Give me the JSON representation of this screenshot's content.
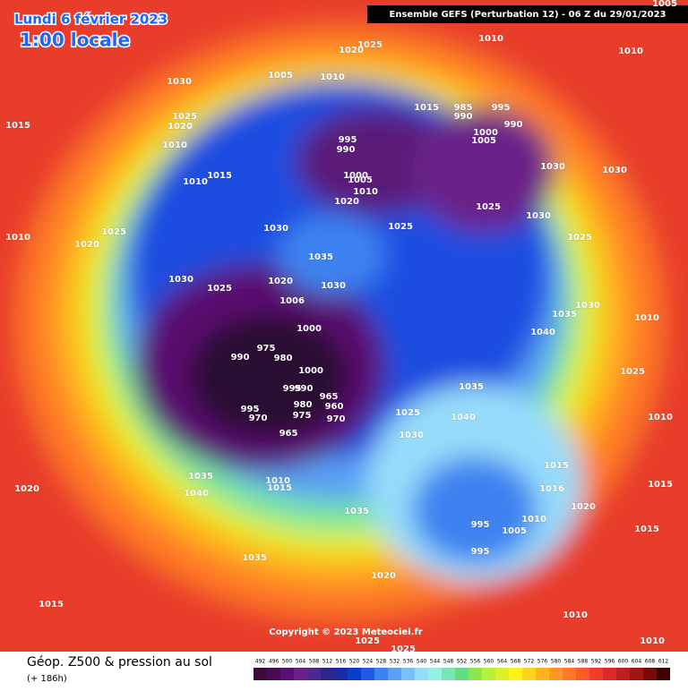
{
  "header": {
    "date": "Lundi 6 février 2023",
    "time": "1:00 locale",
    "run": "Ensemble GEFS  (Perturbation 12)  -  06 Z du 29/01/2023",
    "copyright": "Copyright © 2023 Meteociel.fr"
  },
  "footer": {
    "title": "Géop. Z500 & pression au sol",
    "lead": "(+ 186h)"
  },
  "pressure_labels": [
    1030,
    1005,
    1020,
    1025,
    1010,
    1010,
    1005,
    1010,
    1015,
    1025,
    1020,
    1010,
    1015,
    985,
    990,
    995,
    990,
    1000,
    1005,
    995,
    990,
    1015,
    1010,
    1000,
    1005,
    1010,
    1020,
    1030,
    1030,
    1025,
    1030,
    1010,
    1020,
    1025,
    1030,
    1025,
    1025,
    1035,
    1030,
    1030,
    1025,
    1020,
    1006,
    1035,
    1030,
    1010,
    1000,
    1040,
    975,
    990,
    980,
    1000,
    1035,
    1025,
    995,
    990,
    965,
    960,
    995,
    980,
    970,
    1025,
    1040,
    1010,
    970,
    975,
    965,
    1030,
    1035,
    1010,
    1015,
    1040,
    1015,
    1016,
    1015,
    1020,
    1020,
    1035,
    1010,
    995,
    1005,
    995,
    1015,
    1035,
    1020,
    1015,
    1010,
    1025,
    1025,
    1010
  ],
  "colorbar": {
    "ticks": [
      492,
      496,
      500,
      504,
      508,
      512,
      516,
      520,
      524,
      528,
      532,
      536,
      540,
      544,
      548,
      552,
      556,
      560,
      564,
      568,
      572,
      576,
      580,
      584,
      588,
      592,
      596,
      600,
      604,
      608,
      612
    ],
    "colors": [
      "#3a0a3a",
      "#4a0a52",
      "#5a1070",
      "#6a2088",
      "#4a2890",
      "#28288c",
      "#1a2aa8",
      "#0a3ccc",
      "#1e5ae6",
      "#3c82f0",
      "#5aa0f5",
      "#78c0f8",
      "#96dcfa",
      "#96f0e6",
      "#78e6b4",
      "#64dc82",
      "#8ce650",
      "#b4f03c",
      "#dcf028",
      "#fff01e",
      "#ffd21e",
      "#ffb41e",
      "#ff9628",
      "#ff7828",
      "#ff5a28",
      "#f03c28",
      "#dc2828",
      "#be1e1e",
      "#a01414",
      "#780a0a",
      "#3c0000"
    ]
  }
}
